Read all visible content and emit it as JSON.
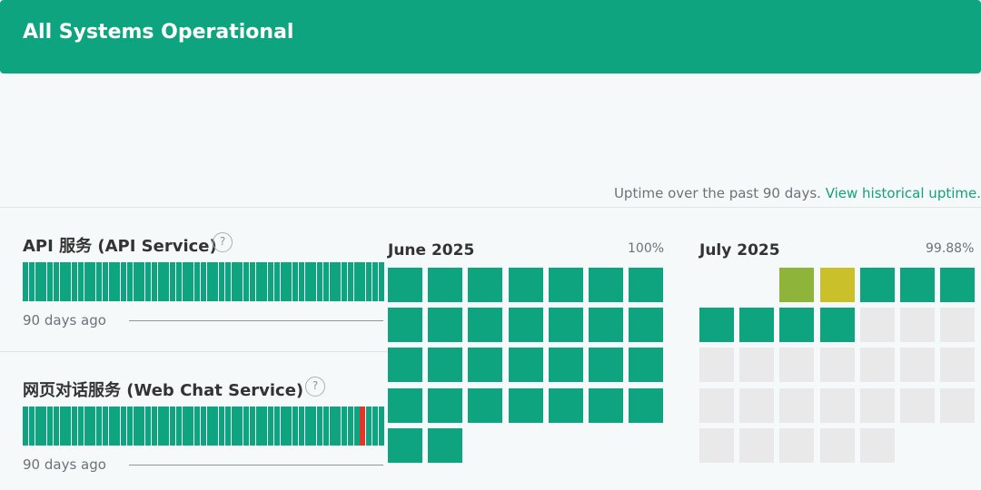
{
  "banner": {
    "title": "All Systems Operational",
    "color": "#0ea47f"
  },
  "uptime_note": {
    "text": "Uptime over the past 90 days. ",
    "link": "View historical uptime."
  },
  "components": [
    {
      "name": "API 服务 (API Service)",
      "help": "?",
      "days_ago_label": "90 days ago",
      "bar_count": 59,
      "incident_bars": []
    },
    {
      "name": "网页对话服务 (Web Chat Service)",
      "help": "?",
      "days_ago_label": "90 days ago",
      "bar_count": 59,
      "incident_bars": [
        55
      ]
    }
  ],
  "calendars": [
    {
      "month": "June 2025",
      "uptime": "100%",
      "start_weekday": 0,
      "days": [
        "ok",
        "ok",
        "ok",
        "ok",
        "ok",
        "ok",
        "ok",
        "ok",
        "ok",
        "ok",
        "ok",
        "ok",
        "ok",
        "ok",
        "ok",
        "ok",
        "ok",
        "ok",
        "ok",
        "ok",
        "ok",
        "ok",
        "ok",
        "ok",
        "ok",
        "ok",
        "ok",
        "ok",
        "ok",
        "ok"
      ]
    },
    {
      "month": "July 2025",
      "uptime": "99.88%",
      "start_weekday": 2,
      "days": [
        "major",
        "partial",
        "ok",
        "ok",
        "ok",
        "ok",
        "ok",
        "ok",
        "ok",
        "nodata",
        "nodata",
        "nodata",
        "nodata",
        "nodata",
        "nodata",
        "nodata",
        "nodata",
        "nodata",
        "nodata",
        "nodata",
        "nodata",
        "nodata",
        "nodata",
        "nodata",
        "nodata",
        "nodata",
        "nodata",
        "nodata",
        "nodata",
        "nodata",
        "nodata"
      ]
    }
  ],
  "colors": {
    "ok": "#0ea47f",
    "major": "#8fb43a",
    "partial": "#c9c02a",
    "nodata": "#e9e9e9",
    "incident": "#e3352a"
  }
}
